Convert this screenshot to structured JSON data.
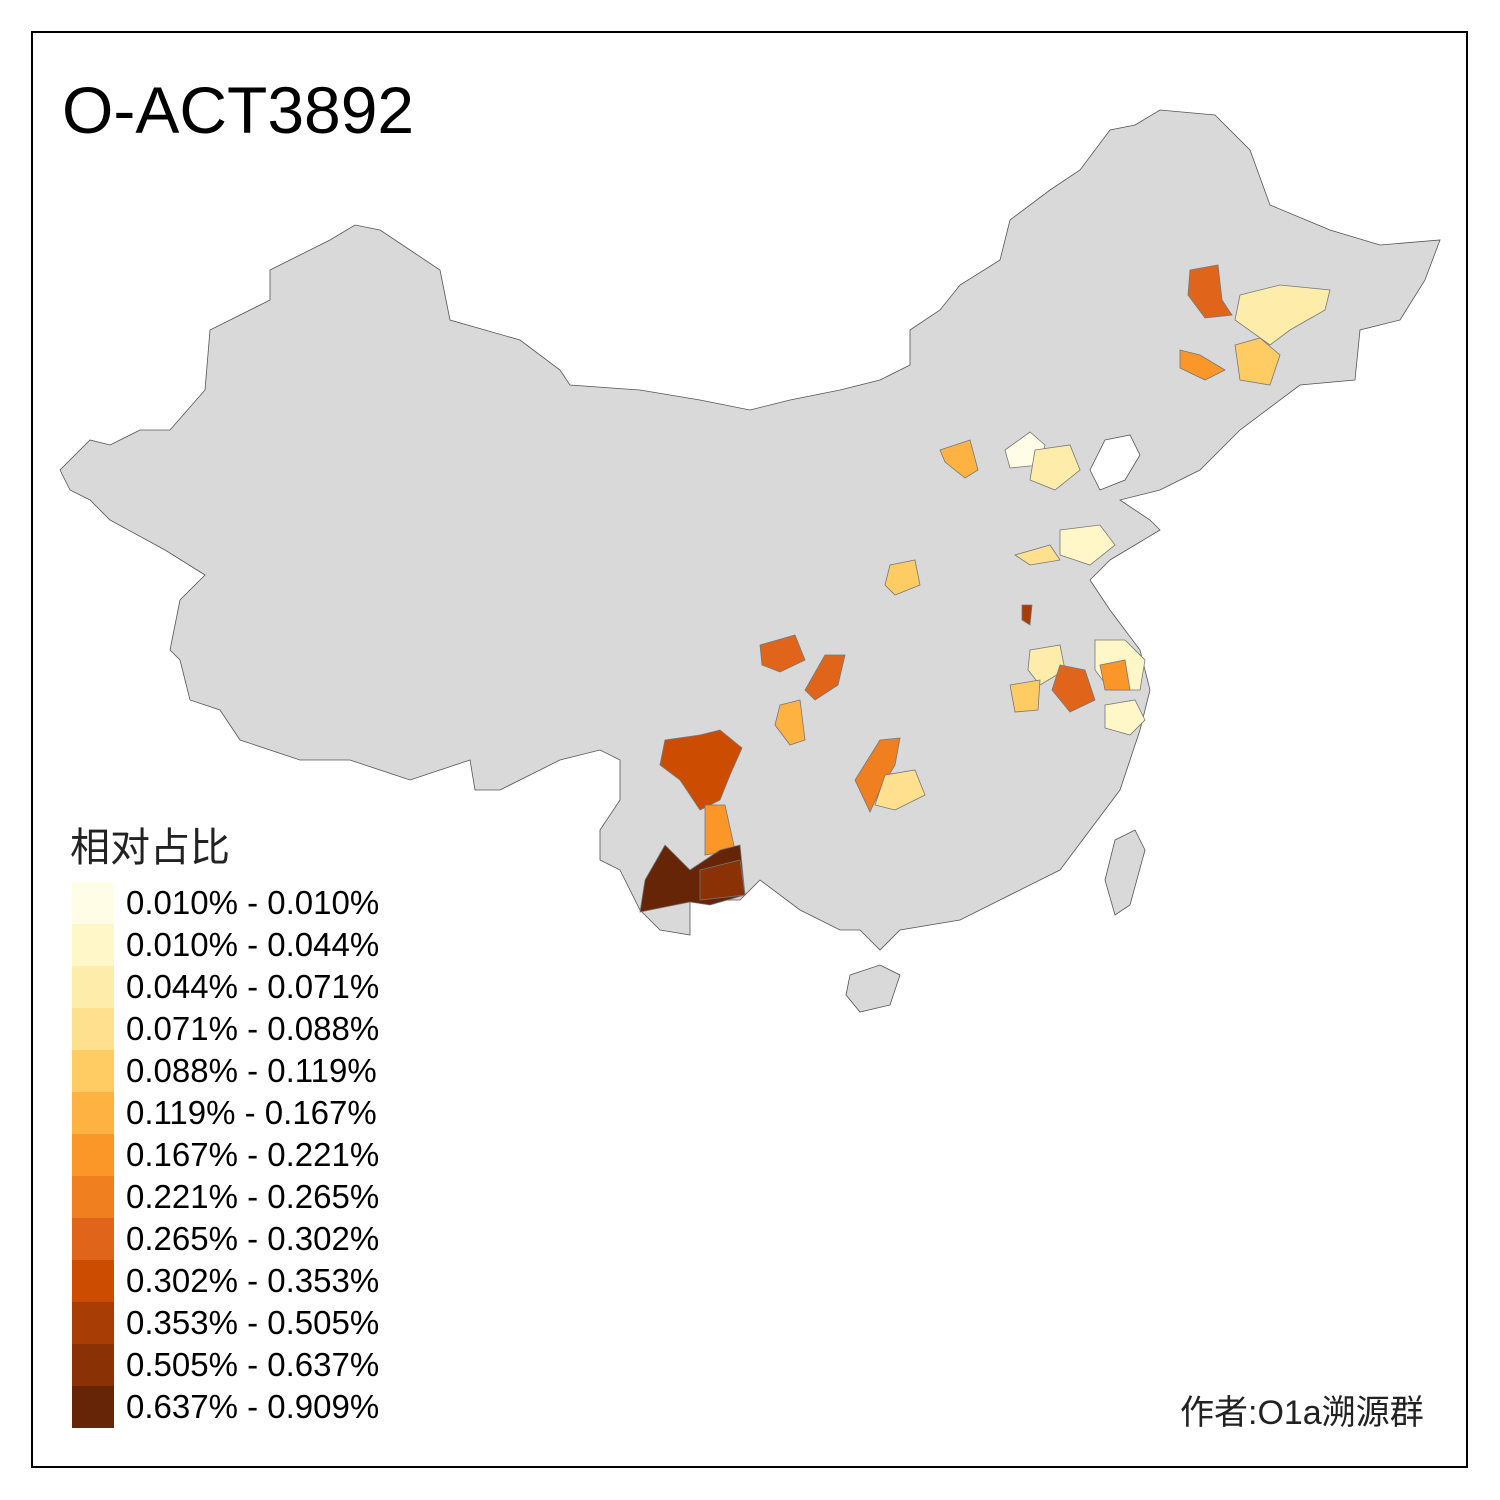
{
  "title": "O-ACT3892",
  "legend": {
    "title": "相对占比",
    "items": [
      {
        "label": "0.010% - 0.010%",
        "color": "#FFFDE6"
      },
      {
        "label": "0.010% - 0.044%",
        "color": "#FFF7C8"
      },
      {
        "label": "0.044% - 0.071%",
        "color": "#FEECAB"
      },
      {
        "label": "0.071% - 0.088%",
        "color": "#FEE08F"
      },
      {
        "label": "0.088% - 0.119%",
        "color": "#FECC63"
      },
      {
        "label": "0.119% - 0.167%",
        "color": "#FDB242"
      },
      {
        "label": "0.167% - 0.221%",
        "color": "#FB9629"
      },
      {
        "label": "0.221% - 0.265%",
        "color": "#F07F20"
      },
      {
        "label": "0.265% - 0.302%",
        "color": "#E0651A"
      },
      {
        "label": "0.302% - 0.353%",
        "color": "#CC4C02"
      },
      {
        "label": "0.353% - 0.505%",
        "color": "#A93D06"
      },
      {
        "label": "0.505% - 0.637%",
        "color": "#8A3106"
      },
      {
        "label": "0.637% - 0.909%",
        "color": "#662506"
      }
    ]
  },
  "credit": "作者:O1a溯源群",
  "map_colors": {
    "base": "#D9D9D9",
    "border": "#555555"
  }
}
